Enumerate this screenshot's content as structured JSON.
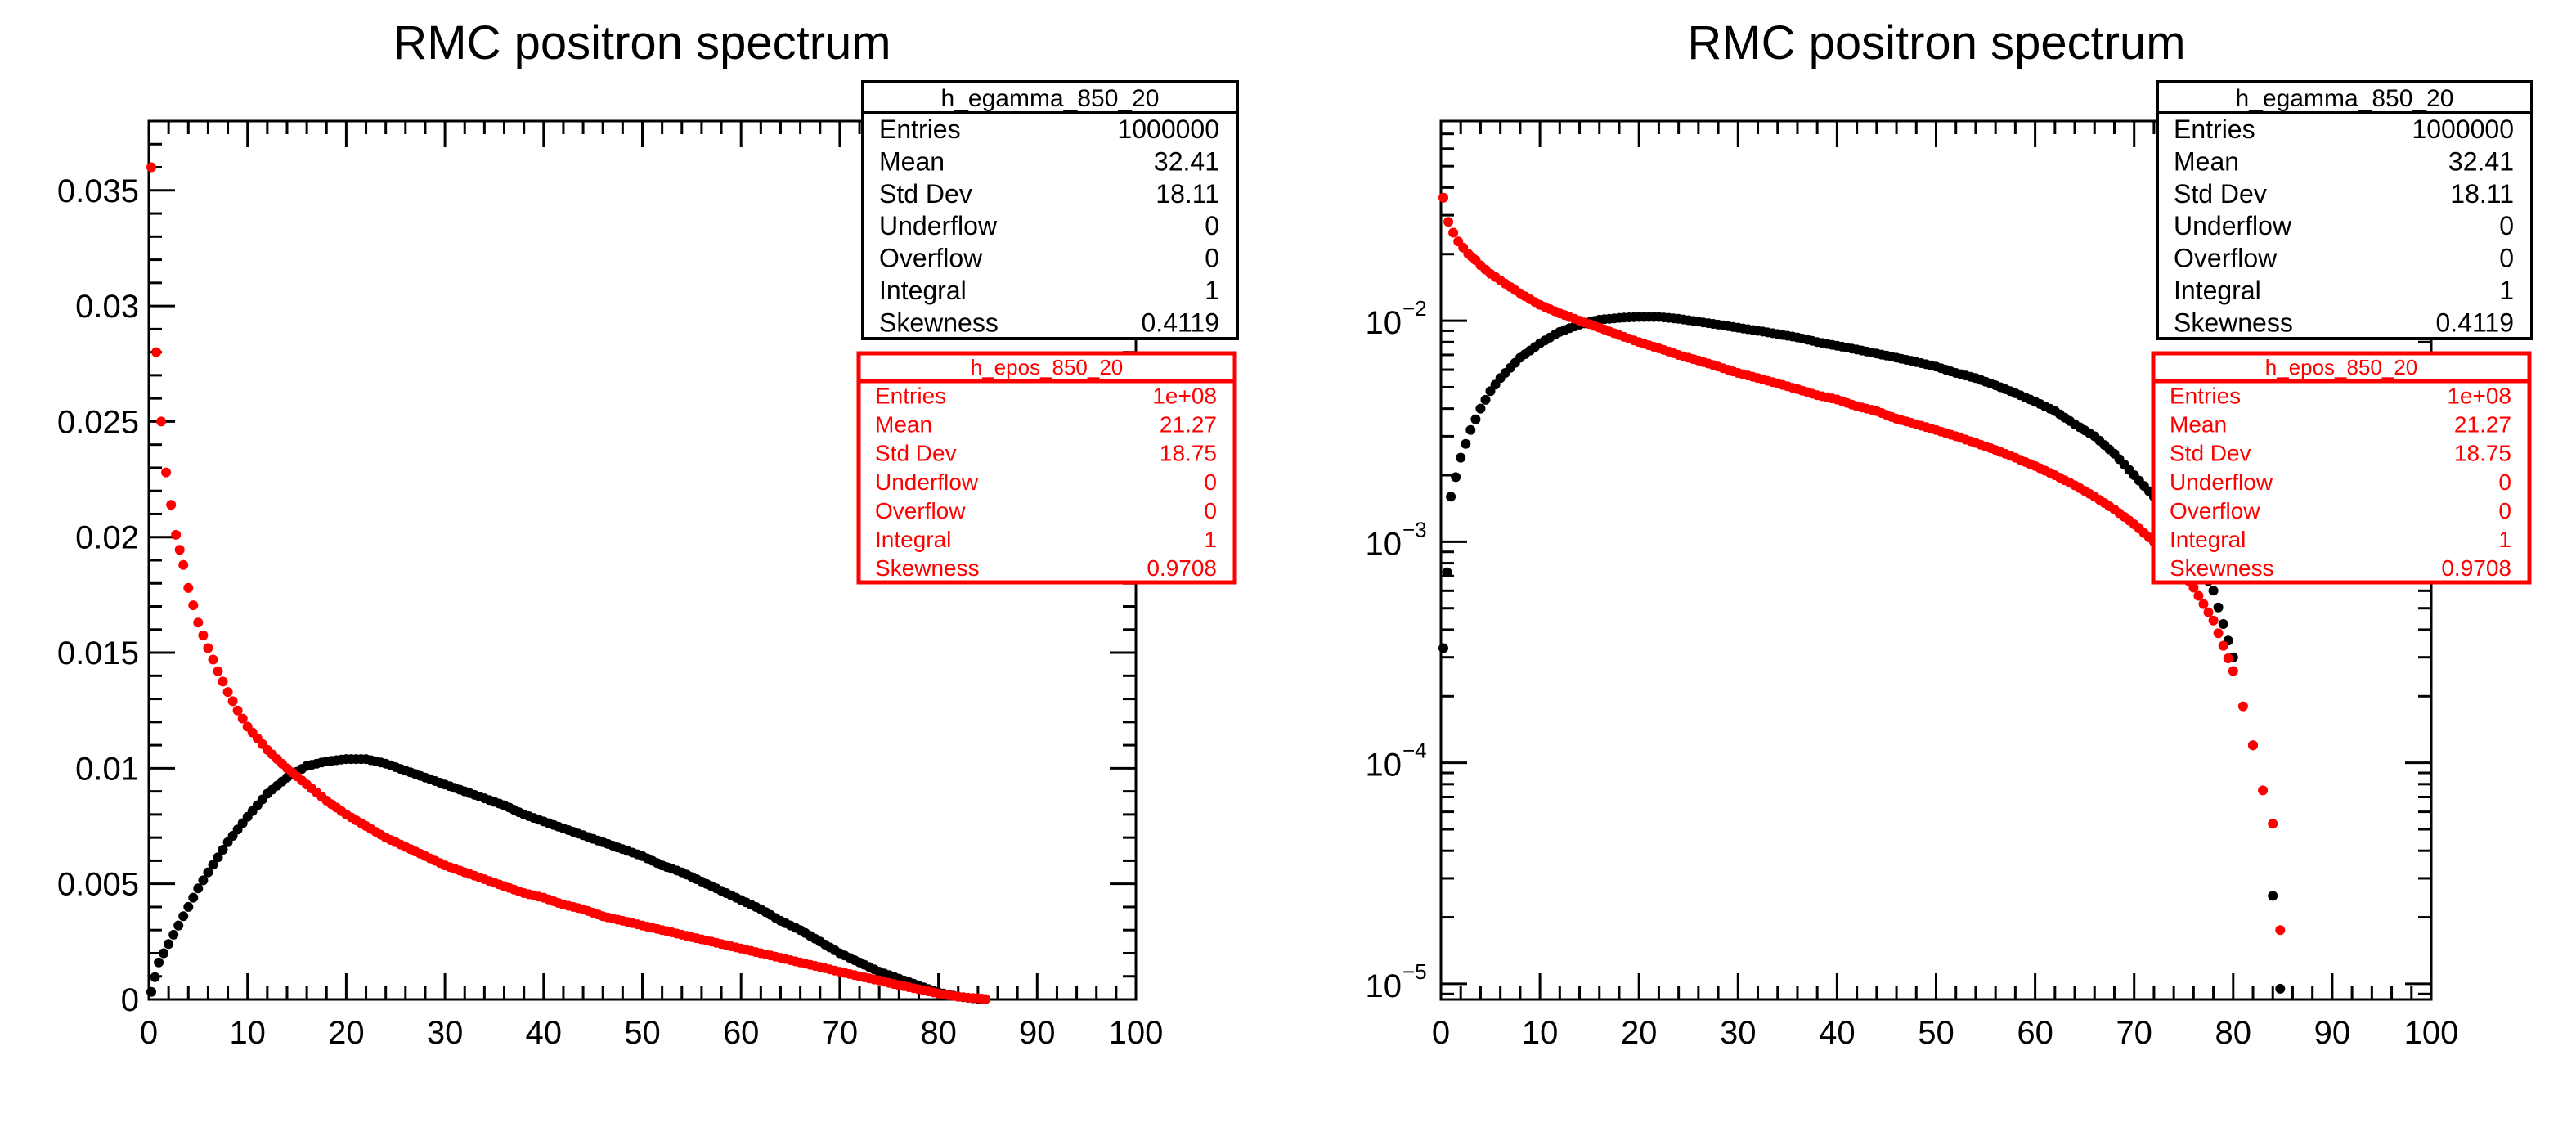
{
  "colors": {
    "photon": "#000000",
    "positron": "#ff0000",
    "frame": "#000000",
    "background": "#ffffff"
  },
  "chart_data": [
    {
      "type": "scatter",
      "title": "RMC positron spectrum",
      "xlabel": "",
      "ylabel": "",
      "xlim": [
        0,
        100
      ],
      "ylim": [
        0,
        0.038
      ],
      "yscale": "linear",
      "grid": false,
      "x_ticks": [
        "0",
        "10",
        "20",
        "30",
        "40",
        "50",
        "60",
        "70",
        "80",
        "90",
        "100"
      ],
      "y_ticks": [
        "0",
        "0.005",
        "0.01",
        "0.015",
        "0.02",
        "0.025",
        "0.03",
        "0.035"
      ],
      "stats_boxes": [
        {
          "name": "h_egamma_850_20",
          "color": "#000000",
          "rows": [
            {
              "label": "Entries",
              "value": "1000000"
            },
            {
              "label": "Mean",
              "value": "32.41"
            },
            {
              "label": "Std Dev",
              "value": "18.11"
            },
            {
              "label": "Underflow",
              "value": "0"
            },
            {
              "label": "Overflow",
              "value": "0"
            },
            {
              "label": "Integral",
              "value": "1"
            },
            {
              "label": "Skewness",
              "value": "0.4119"
            }
          ]
        },
        {
          "name": "h_epos_850_20",
          "color": "#ff0000",
          "rows": [
            {
              "label": "Entries",
              "value": "1e+08"
            },
            {
              "label": "Mean",
              "value": "21.27"
            },
            {
              "label": "Std Dev",
              "value": "18.75"
            },
            {
              "label": "Underflow",
              "value": "0"
            },
            {
              "label": "Overflow",
              "value": "0"
            },
            {
              "label": "Integral",
              "value": "1"
            },
            {
              "label": "Skewness",
              "value": "0.9708"
            }
          ]
        }
      ],
      "series": [
        {
          "color": "#000000",
          "x": [
            0.25,
            1,
            2,
            3,
            4,
            5,
            6,
            8,
            10,
            12,
            14,
            16,
            18,
            20,
            22,
            24,
            26,
            28,
            30,
            32,
            34,
            36,
            38,
            40,
            42,
            44,
            46,
            48,
            50,
            52,
            54,
            56,
            58,
            60,
            62,
            64,
            66,
            68,
            70,
            72,
            74,
            76,
            78,
            80,
            82,
            84,
            84.75
          ],
          "y": [
            0.00033,
            0.0016,
            0.0024,
            0.0032,
            0.004,
            0.0048,
            0.0055,
            0.0068,
            0.0079,
            0.0089,
            0.0096,
            0.0101,
            0.0103,
            0.0104,
            0.0104,
            0.0102,
            0.0099,
            0.0096,
            0.0093,
            0.009,
            0.0087,
            0.0084,
            0.008,
            0.0077,
            0.0074,
            0.0071,
            0.0068,
            0.0065,
            0.0062,
            0.0058,
            0.0055,
            0.0051,
            0.0047,
            0.0043,
            0.0039,
            0.0034,
            0.003,
            0.0025,
            0.002,
            0.0016,
            0.0012,
            0.0009,
            0.0006,
            0.0003,
            0.00012,
            2.5e-05,
            9.5e-06
          ]
        },
        {
          "color": "#ff0000",
          "x": [
            0.25,
            0.75,
            1.25,
            1.75,
            2.25,
            2.75,
            3.5,
            4,
            5,
            6,
            7,
            8,
            9,
            10,
            12,
            14,
            16,
            18,
            20,
            22,
            24,
            26,
            28,
            30,
            32,
            34,
            36,
            38,
            40,
            42,
            44,
            46,
            48,
            50,
            52,
            54,
            56,
            58,
            60,
            62,
            64,
            66,
            68,
            70,
            72,
            74,
            76,
            78,
            80,
            81,
            82,
            83,
            84,
            84.75
          ],
          "y": [
            0.036,
            0.028,
            0.025,
            0.0228,
            0.0214,
            0.0201,
            0.0188,
            0.0178,
            0.0163,
            0.0152,
            0.0142,
            0.0133,
            0.0125,
            0.0118,
            0.0108,
            0.01,
            0.0093,
            0.0086,
            0.008,
            0.0075,
            0.007,
            0.0066,
            0.0062,
            0.0058,
            0.0055,
            0.0052,
            0.0049,
            0.0046,
            0.0044,
            0.0041,
            0.0039,
            0.0036,
            0.0034,
            0.0032,
            0.003,
            0.0028,
            0.0026,
            0.0024,
            0.0022,
            0.002,
            0.0018,
            0.0016,
            0.0014,
            0.0012,
            0.001,
            0.00082,
            0.00062,
            0.00044,
            0.00026,
            0.00018,
            0.00012,
            7.5e-05,
            5.3e-05,
            1.75e-05
          ]
        }
      ]
    },
    {
      "type": "scatter",
      "title": "RMC positron spectrum",
      "xlabel": "",
      "ylabel": "",
      "xlim": [
        0,
        100
      ],
      "ylim": [
        8.5e-06,
        0.08
      ],
      "yscale": "log",
      "grid": false,
      "x_ticks": [
        "0",
        "10",
        "20",
        "30",
        "40",
        "50",
        "60",
        "70",
        "80",
        "90",
        "100"
      ],
      "y_ticks_log": [
        {
          "value": 1e-05,
          "mantissa": "10",
          "exponent": "−5"
        },
        {
          "value": 0.0001,
          "mantissa": "10",
          "exponent": "−4"
        },
        {
          "value": 0.001,
          "mantissa": "10",
          "exponent": "−3"
        },
        {
          "value": 0.01,
          "mantissa": "10",
          "exponent": "−2"
        }
      ],
      "stats_boxes": [
        {
          "name": "h_egamma_850_20",
          "color": "#000000",
          "rows": [
            {
              "label": "Entries",
              "value": "1000000"
            },
            {
              "label": "Mean",
              "value": "32.41"
            },
            {
              "label": "Std Dev",
              "value": "18.11"
            },
            {
              "label": "Underflow",
              "value": "0"
            },
            {
              "label": "Overflow",
              "value": "0"
            },
            {
              "label": "Integral",
              "value": "1"
            },
            {
              "label": "Skewness",
              "value": "0.4119"
            }
          ]
        },
        {
          "name": "h_epos_850_20",
          "color": "#ff0000",
          "rows": [
            {
              "label": "Entries",
              "value": "1e+08"
            },
            {
              "label": "Mean",
              "value": "21.27"
            },
            {
              "label": "Std Dev",
              "value": "18.75"
            },
            {
              "label": "Underflow",
              "value": "0"
            },
            {
              "label": "Overflow",
              "value": "0"
            },
            {
              "label": "Integral",
              "value": "1"
            },
            {
              "label": "Skewness",
              "value": "0.9708"
            }
          ]
        }
      ],
      "series": [
        {
          "color": "#000000",
          "x": [
            0.25,
            1,
            2,
            3,
            4,
            5,
            6,
            8,
            10,
            12,
            14,
            16,
            18,
            20,
            22,
            24,
            26,
            28,
            30,
            32,
            34,
            36,
            38,
            40,
            42,
            44,
            46,
            48,
            50,
            52,
            54,
            56,
            58,
            60,
            62,
            64,
            66,
            68,
            70,
            72,
            74,
            76,
            78,
            80,
            82,
            84,
            84.75
          ],
          "y": [
            0.00033,
            0.0016,
            0.0024,
            0.0032,
            0.004,
            0.0048,
            0.0055,
            0.0068,
            0.0079,
            0.0089,
            0.0096,
            0.0101,
            0.0103,
            0.0104,
            0.0104,
            0.0102,
            0.0099,
            0.0096,
            0.0093,
            0.009,
            0.0087,
            0.0084,
            0.008,
            0.0077,
            0.0074,
            0.0071,
            0.0068,
            0.0065,
            0.0062,
            0.0058,
            0.0055,
            0.0051,
            0.0047,
            0.0043,
            0.0039,
            0.0034,
            0.003,
            0.0025,
            0.002,
            0.0016,
            0.0012,
            0.0009,
            0.0006,
            0.0003,
            0.00012,
            2.5e-05,
            9.5e-06
          ]
        },
        {
          "color": "#ff0000",
          "x": [
            0.25,
            0.75,
            1.25,
            1.75,
            2.25,
            2.75,
            3.5,
            4,
            5,
            6,
            7,
            8,
            9,
            10,
            12,
            14,
            16,
            18,
            20,
            22,
            24,
            26,
            28,
            30,
            32,
            34,
            36,
            38,
            40,
            42,
            44,
            46,
            48,
            50,
            52,
            54,
            56,
            58,
            60,
            62,
            64,
            66,
            68,
            70,
            72,
            74,
            76,
            78,
            80,
            81,
            82,
            83,
            84,
            84.75
          ],
          "y": [
            0.036,
            0.028,
            0.025,
            0.0228,
            0.0214,
            0.0201,
            0.0188,
            0.0178,
            0.0163,
            0.0152,
            0.0142,
            0.0133,
            0.0125,
            0.0118,
            0.0108,
            0.01,
            0.0093,
            0.0086,
            0.008,
            0.0075,
            0.007,
            0.0066,
            0.0062,
            0.0058,
            0.0055,
            0.0052,
            0.0049,
            0.0046,
            0.0044,
            0.0041,
            0.0039,
            0.0036,
            0.0034,
            0.0032,
            0.003,
            0.0028,
            0.0026,
            0.0024,
            0.0022,
            0.002,
            0.0018,
            0.0016,
            0.0014,
            0.0012,
            0.001,
            0.00082,
            0.00062,
            0.00044,
            0.00026,
            0.00018,
            0.00012,
            7.5e-05,
            5.3e-05,
            1.75e-05
          ]
        }
      ]
    }
  ]
}
